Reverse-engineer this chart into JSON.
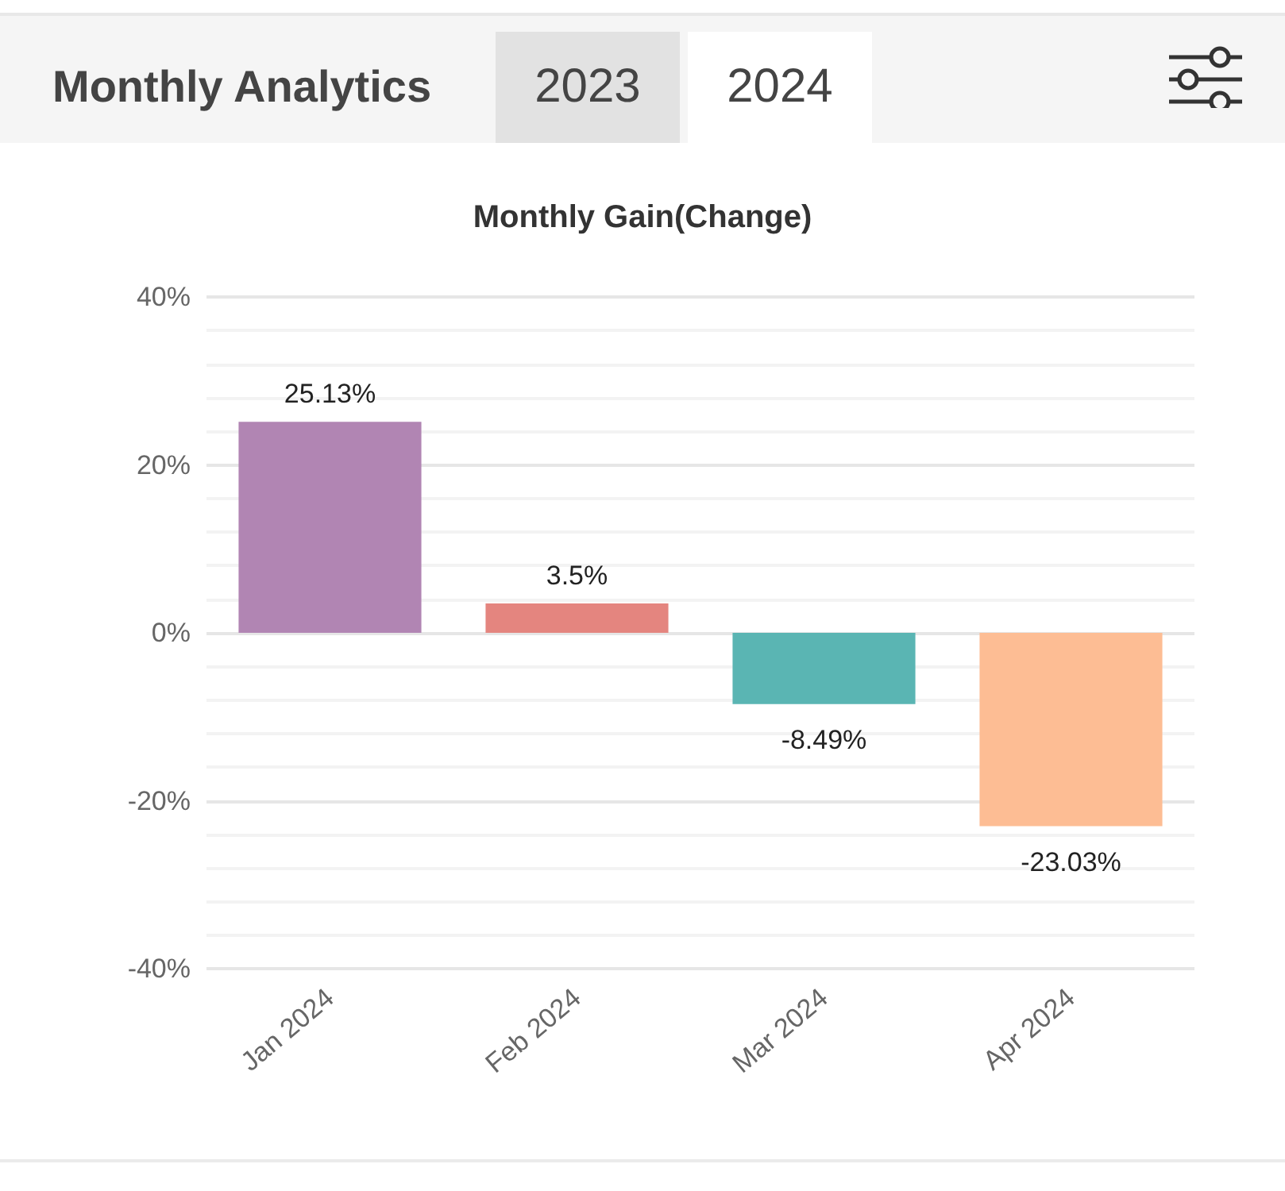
{
  "chart_data": {
    "type": "bar",
    "title": "Monthly Analytics",
    "subtitle": "Monthly Gain(Change)",
    "annotations": [
      "2023",
      "2024"
    ],
    "categories": [
      "Jan 2024",
      "Feb 2024",
      "Mar 2024",
      "Apr 2024"
    ],
    "values": [
      25.13,
      3.5,
      -8.49,
      -23.03
    ],
    "colors": [
      "#b185b3",
      "#e4857f",
      "#5ab5b3",
      "#fdbd94"
    ],
    "value_labels": [
      "25.13%",
      "3.5%",
      "-8.49%",
      "-23.03%"
    ],
    "ylim": [
      -40,
      40
    ],
    "yticks": [
      {
        "value": -40,
        "label": "-40%"
      },
      {
        "value": -36,
        "label": null
      },
      {
        "value": -32,
        "label": null
      },
      {
        "value": -28,
        "label": null
      },
      {
        "value": -24,
        "label": null
      },
      {
        "value": -20,
        "label": "-20%"
      },
      {
        "value": -16,
        "label": null
      },
      {
        "value": -12,
        "label": null
      },
      {
        "value": -8,
        "label": null
      },
      {
        "value": -4,
        "label": null
      },
      {
        "value": 0,
        "label": "0%"
      },
      {
        "value": 4,
        "label": null
      },
      {
        "value": 8,
        "label": null
      },
      {
        "value": 12,
        "label": null
      },
      {
        "value": 16,
        "label": null
      },
      {
        "value": 20,
        "label": "20%"
      },
      {
        "value": 24,
        "label": null
      },
      {
        "value": 28,
        "label": null
      },
      {
        "value": 32,
        "label": null
      },
      {
        "value": 36,
        "label": null
      },
      {
        "value": 40,
        "label": "40%"
      }
    ],
    "grid": "y"
  }
}
